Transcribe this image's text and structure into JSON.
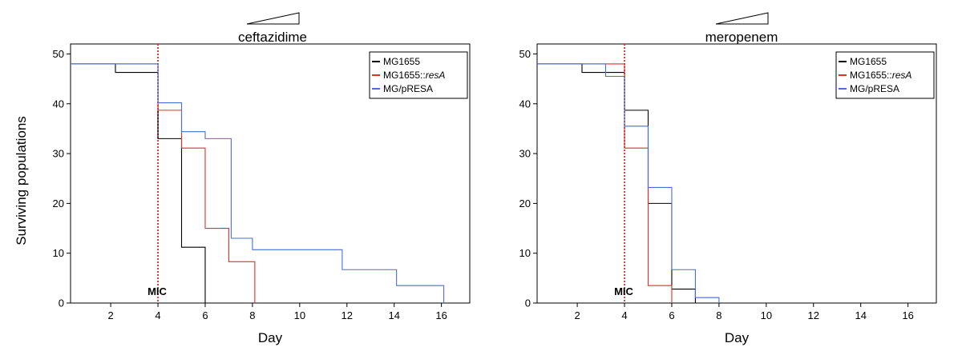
{
  "ylabel_shared": "Surviving populations",
  "chart_data": [
    {
      "type": "line",
      "step": true,
      "title": "ceftazidime",
      "xlabel": "Day",
      "ylabel": "Surviving populations",
      "xlim": [
        0.3,
        17.2
      ],
      "ylim": [
        0,
        52
      ],
      "xticks": [
        2,
        4,
        6,
        8,
        10,
        12,
        14,
        16
      ],
      "yticks": [
        0,
        10,
        20,
        30,
        40,
        50
      ],
      "mic": {
        "x": 4,
        "label": "MIC",
        "color": "#e0302a"
      },
      "series": [
        {
          "name": "MG1655",
          "name_italic": "",
          "color": "#000000",
          "x": [
            0.3,
            2.2,
            4,
            5,
            6
          ],
          "y": [
            48,
            46.3,
            33,
            11.2,
            0
          ]
        },
        {
          "name": "MG1655::",
          "name_italic": "resA",
          "color": "#e0302a",
          "x": [
            0.3,
            4,
            5,
            6,
            7,
            8.1
          ],
          "y": [
            48,
            38.7,
            31.1,
            15,
            8.3,
            0
          ]
        },
        {
          "name": "MG/pRESA",
          "name_italic": "",
          "color": "#4a6fd0",
          "x": [
            0.3,
            4,
            5,
            6,
            7.1,
            8,
            11.8,
            14.1,
            16.1
          ],
          "y": [
            48,
            40.2,
            34.4,
            33,
            13,
            10.7,
            6.7,
            3.5,
            0
          ]
        }
      ]
    },
    {
      "type": "line",
      "step": true,
      "title": "meropenem",
      "xlabel": "Day",
      "ylabel": "",
      "xlim": [
        0.3,
        17.2
      ],
      "ylim": [
        0,
        52
      ],
      "xticks": [
        2,
        4,
        6,
        8,
        10,
        12,
        14,
        16
      ],
      "yticks": [
        0,
        10,
        20,
        30,
        40,
        50
      ],
      "mic": {
        "x": 4,
        "label": "MIC",
        "color": "#e0302a"
      },
      "series": [
        {
          "name": "MG1655",
          "name_italic": "",
          "color": "#000000",
          "x": [
            0.3,
            2.2,
            4,
            5,
            6,
            7
          ],
          "y": [
            48,
            46.3,
            38.7,
            20,
            2.8,
            0
          ]
        },
        {
          "name": "MG1655::",
          "name_italic": "resA",
          "color": "#e0302a",
          "x": [
            0.3,
            4,
            5,
            6
          ],
          "y": [
            48,
            31.1,
            3.5,
            0
          ]
        },
        {
          "name": "MG/pRESA",
          "name_italic": "",
          "color": "#4a6fd0",
          "x": [
            0.3,
            3.2,
            4,
            5,
            6,
            7,
            8
          ],
          "y": [
            48,
            45.5,
            35.5,
            23.2,
            6.7,
            1.1,
            0
          ]
        }
      ]
    }
  ]
}
